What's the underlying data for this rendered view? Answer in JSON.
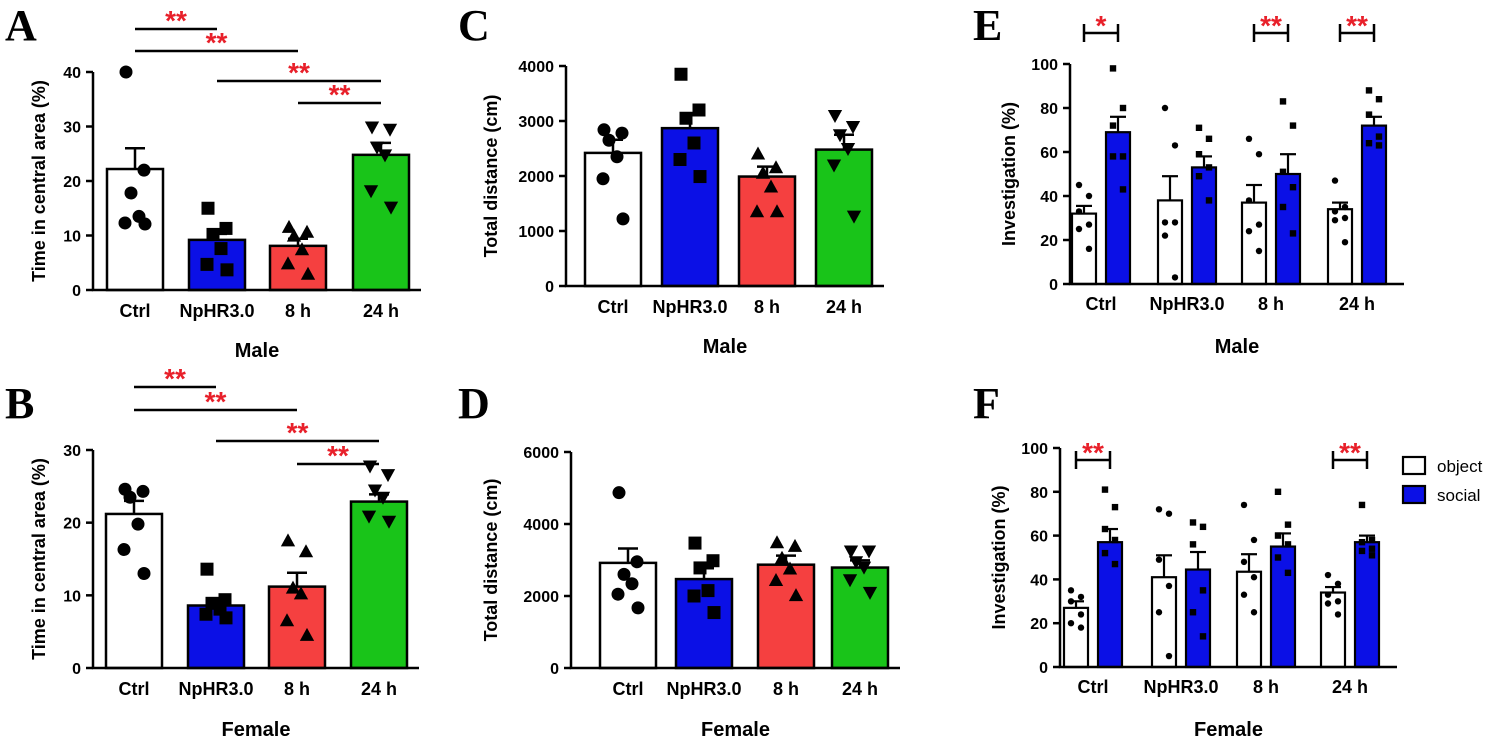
{
  "colors": {
    "ctrl": "#ffffff",
    "nphr": "#0b10e6",
    "h8": "#f54040",
    "h24": "#19c419",
    "object": "#ffffff",
    "social": "#0b10e6",
    "star": "#e8202a"
  },
  "chart_data": [
    {
      "id": "A",
      "panel_label": "A",
      "type": "bar",
      "categories": [
        "Ctrl",
        "NpHR3.0",
        "8 h",
        "24 h"
      ],
      "values": [
        22.2,
        9.2,
        8.1,
        24.8
      ],
      "errors": [
        3.8,
        1.1,
        1.3,
        2.2
      ],
      "points": [
        [
          40,
          22,
          17.8,
          13.5,
          12.3,
          12.1
        ],
        [
          15,
          11.3,
          10.2,
          7.6,
          4.7,
          3.7
        ],
        [
          11.5,
          10.6,
          9.9,
          7.4,
          4.8,
          2.9
        ],
        [
          29.9,
          29.5,
          26.2,
          24.8,
          18.2,
          15.2
        ]
      ],
      "markers": [
        "circle",
        "square",
        "triangle-up",
        "triangle-down"
      ],
      "ylabel": "Time in central area (%)",
      "xlabel": "Male",
      "ylim": [
        0,
        40
      ],
      "yticks": [
        "0",
        "10",
        "20",
        "30",
        "40"
      ],
      "significance": [
        {
          "from": "Ctrl",
          "to": "NpHR3.0",
          "label": "**"
        },
        {
          "from": "Ctrl",
          "to": "8 h",
          "label": "**"
        },
        {
          "from": "NpHR3.0",
          "to": "24 h",
          "label": "**"
        },
        {
          "from": "8 h",
          "to": "24 h",
          "label": "**"
        }
      ]
    },
    {
      "id": "B",
      "panel_label": "B",
      "type": "bar",
      "categories": [
        "Ctrl",
        "NpHR3.0",
        "8 h",
        "24 h"
      ],
      "values": [
        21.2,
        8.6,
        11.2,
        22.9
      ],
      "errors": [
        1.8,
        0.8,
        1.9,
        1.0
      ],
      "points": [
        [
          24.6,
          24.3,
          23.5,
          19.8,
          16.3,
          13.0
        ],
        [
          13.6,
          9.4,
          8.9,
          8.1,
          7.4,
          6.9
        ],
        [
          17.5,
          16.0,
          11.0,
          10.2,
          6.5,
          4.5
        ],
        [
          27.8,
          26.6,
          24.5,
          23.5,
          20.9,
          20.2
        ]
      ],
      "markers": [
        "circle",
        "square",
        "triangle-up",
        "triangle-down"
      ],
      "ylabel": "Time in central area (%)",
      "xlabel": "Female",
      "ylim": [
        0,
        30
      ],
      "yticks": [
        "0",
        "10",
        "20",
        "30"
      ],
      "significance": [
        {
          "from": "Ctrl",
          "to": "NpHR3.0",
          "label": "**"
        },
        {
          "from": "Ctrl",
          "to": "8 h",
          "label": "**"
        },
        {
          "from": "NpHR3.0",
          "to": "24 h",
          "label": "**"
        },
        {
          "from": "8 h",
          "to": "24 h",
          "label": "**"
        }
      ]
    },
    {
      "id": "C",
      "panel_label": "C",
      "type": "bar",
      "categories": [
        "Ctrl",
        "NpHR3.0",
        "8 h",
        "24 h"
      ],
      "values": [
        2420,
        2870,
        1990,
        2480
      ],
      "errors": [
        240,
        270,
        180,
        270
      ],
      "points": [
        [
          2840,
          2780,
          2650,
          2350,
          1950,
          1220
        ],
        [
          3850,
          3200,
          3050,
          2600,
          2300,
          1990
        ],
        [
          2400,
          2150,
          2050,
          1800,
          1350,
          1350
        ],
        [
          3100,
          2900,
          2750,
          2500,
          2200,
          1270
        ]
      ],
      "markers": [
        "circle",
        "square",
        "triangle-up",
        "triangle-down"
      ],
      "ylabel": "Total distance (cm)",
      "xlabel": "Male",
      "ylim": [
        0,
        4000
      ],
      "yticks": [
        "0",
        "1000",
        "2000",
        "3000",
        "4000"
      ],
      "significance": []
    },
    {
      "id": "D",
      "panel_label": "D",
      "type": "bar",
      "categories": [
        "Ctrl",
        "NpHR3.0",
        "8 h",
        "24 h"
      ],
      "values": [
        2920,
        2470,
        2870,
        2790
      ],
      "errors": [
        400,
        300,
        250,
        200
      ],
      "points": [
        [
          4870,
          2950,
          2600,
          2340,
          2050,
          1670
        ],
        [
          3470,
          2980,
          2780,
          2150,
          2000,
          1540
        ],
        [
          3480,
          3380,
          3050,
          2750,
          2430,
          2010
        ],
        [
          3250,
          3250,
          2950,
          2800,
          2450,
          2100
        ]
      ],
      "markers": [
        "circle",
        "square",
        "triangle-up",
        "triangle-down"
      ],
      "ylabel": "Total distance (cm)",
      "xlabel": "Female",
      "ylim": [
        0,
        6000
      ],
      "yticks": [
        "0",
        "2000",
        "4000",
        "6000"
      ],
      "significance": []
    },
    {
      "id": "E",
      "panel_label": "E",
      "type": "bar",
      "categories": [
        "Ctrl",
        "NpHR3.0",
        "8 h",
        "24 h"
      ],
      "series": [
        {
          "name": "object",
          "values": [
            32,
            38,
            37,
            34
          ],
          "errors": [
            3.5,
            11,
            8,
            3
          ],
          "points": [
            [
              45,
              40,
              33,
              27,
              25,
              16
            ],
            [
              80,
              63,
              28,
              28,
              22,
              3
            ],
            [
              66,
              59,
              38,
              27,
              24,
              15
            ],
            [
              47,
              35,
              33,
              30,
              29,
              19
            ]
          ]
        },
        {
          "name": "social",
          "values": [
            69,
            53,
            50,
            72
          ],
          "errors": [
            7,
            5,
            9,
            4
          ],
          "points": [
            [
              98,
              80,
              72,
              58,
              58,
              43
            ],
            [
              71,
              66,
              59,
              53,
              49,
              38
            ],
            [
              83,
              72,
              51,
              44,
              35,
              23
            ],
            [
              88,
              84,
              77,
              67,
              64,
              63
            ]
          ]
        }
      ],
      "ylabel": "Investigation (%)",
      "xlabel": "Male",
      "ylim": [
        0,
        100
      ],
      "yticks": [
        "0",
        "20",
        "40",
        "60",
        "80",
        "100"
      ],
      "significance": [
        {
          "category": "Ctrl",
          "label": "*"
        },
        {
          "category": "8 h",
          "label": "**"
        },
        {
          "category": "24 h",
          "label": "**"
        }
      ]
    },
    {
      "id": "F",
      "panel_label": "F",
      "type": "bar",
      "categories": [
        "Ctrl",
        "NpHR3.0",
        "8 h",
        "24 h"
      ],
      "series": [
        {
          "name": "object",
          "values": [
            27,
            41,
            43.5,
            34
          ],
          "errors": [
            3,
            10,
            8,
            2.5
          ],
          "points": [
            [
              35,
              32,
              30,
              24,
              20,
              18
            ],
            [
              72,
              70,
              49,
              37,
              25,
              5
            ],
            [
              74,
              58,
              48,
              41,
              33,
              25
            ],
            [
              42,
              38,
              33,
              30,
              29,
              24
            ]
          ]
        },
        {
          "name": "social",
          "values": [
            57,
            44.5,
            55,
            57
          ],
          "errors": [
            6,
            8,
            6,
            3
          ],
          "points": [
            [
              81,
              73,
              63,
              58,
              52,
              47
            ],
            [
              66,
              64,
              56,
              35,
              25,
              14
            ],
            [
              80,
              65,
              60,
              56,
              50,
              43
            ],
            [
              74,
              58,
              57,
              54,
              53,
              51
            ]
          ]
        }
      ],
      "ylabel": "Investigation (%)",
      "xlabel": "Female",
      "ylim": [
        0,
        100
      ],
      "yticks": [
        "0",
        "20",
        "40",
        "60",
        "80",
        "100"
      ],
      "significance": [
        {
          "category": "Ctrl",
          "label": "**"
        },
        {
          "category": "24 h",
          "label": "**"
        }
      ],
      "legend": {
        "placement": "right",
        "entries": [
          "object",
          "social"
        ]
      }
    }
  ]
}
